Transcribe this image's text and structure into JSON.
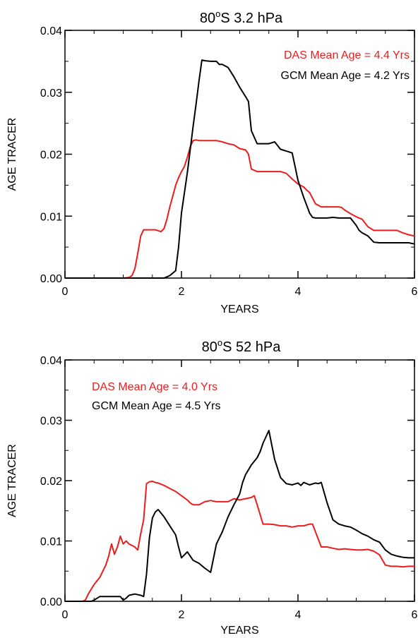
{
  "chart_data": [
    {
      "type": "line",
      "title": {
        "lat": "80",
        "sup": "o",
        "rest": "S  3.2 hPa"
      },
      "xlabel": "YEARS",
      "ylabel": "AGE TRACER",
      "xlim": [
        0,
        6
      ],
      "ylim": [
        0,
        0.04
      ],
      "xticks": [
        "0",
        "2",
        "4",
        "6"
      ],
      "yticks": [
        "0.00",
        "0.01",
        "0.02",
        "0.03",
        "0.04"
      ],
      "legend_position": "top-right",
      "series": [
        {
          "name": "DAS",
          "label": "DAS Mean Age = 4.4 Yrs",
          "color": "#ee1c1c",
          "x": [
            0.0,
            0.5,
            1.0,
            1.1,
            1.15,
            1.2,
            1.25,
            1.3,
            1.35,
            1.45,
            1.55,
            1.65,
            1.7,
            1.75,
            1.8,
            1.85,
            1.9,
            1.95,
            2.0,
            2.05,
            2.1,
            2.15,
            2.2,
            2.25,
            2.3,
            2.4,
            2.5,
            2.6,
            2.7,
            2.8,
            2.9,
            3.0,
            3.1,
            3.15,
            3.2,
            3.3,
            3.4,
            3.5,
            3.6,
            3.7,
            3.8,
            3.9,
            4.0,
            4.1,
            4.15,
            4.2,
            4.3,
            4.4,
            4.5,
            4.6,
            4.7,
            4.75,
            4.8,
            4.9,
            5.0,
            5.05,
            5.1,
            5.2,
            5.3,
            5.4,
            5.5,
            5.6,
            5.7,
            5.8,
            5.9,
            6.0
          ],
          "y": [
            0.0,
            0.0,
            0.0,
            0.0001,
            0.0004,
            0.0015,
            0.004,
            0.0068,
            0.0078,
            0.0078,
            0.0078,
            0.0075,
            0.008,
            0.0095,
            0.0115,
            0.0132,
            0.015,
            0.0162,
            0.0172,
            0.018,
            0.0195,
            0.0212,
            0.0222,
            0.0223,
            0.0222,
            0.0222,
            0.0222,
            0.0222,
            0.022,
            0.0217,
            0.0215,
            0.0209,
            0.0207,
            0.02,
            0.0176,
            0.0172,
            0.0172,
            0.0172,
            0.0172,
            0.0172,
            0.0169,
            0.016,
            0.0152,
            0.0147,
            0.0142,
            0.0138,
            0.012,
            0.0115,
            0.0115,
            0.0115,
            0.0115,
            0.0114,
            0.011,
            0.0104,
            0.0099,
            0.0097,
            0.0095,
            0.0083,
            0.0077,
            0.0077,
            0.0077,
            0.0077,
            0.0077,
            0.0073,
            0.007,
            0.0068
          ]
        },
        {
          "name": "GCM",
          "label": "GCM Mean Age = 4.2 Yrs",
          "color": "#000000",
          "x": [
            0.0,
            1.0,
            1.5,
            1.6,
            1.7,
            1.8,
            1.9,
            1.95,
            2.0,
            2.1,
            2.2,
            2.25,
            2.3,
            2.35,
            2.4,
            2.5,
            2.6,
            2.65,
            2.7,
            2.8,
            2.9,
            3.0,
            3.1,
            3.15,
            3.2,
            3.3,
            3.4,
            3.5,
            3.6,
            3.7,
            3.8,
            3.9,
            4.0,
            4.1,
            4.2,
            4.25,
            4.3,
            4.4,
            4.5,
            4.6,
            4.7,
            4.8,
            4.9,
            5.0,
            5.05,
            5.1,
            5.2,
            5.3,
            5.4,
            5.5,
            5.6,
            5.7,
            5.8,
            5.9,
            6.0
          ],
          "y": [
            0.0,
            0.0,
            0.0,
            0.0,
            0.0,
            0.0004,
            0.0012,
            0.005,
            0.0105,
            0.017,
            0.0245,
            0.028,
            0.0318,
            0.0352,
            0.0351,
            0.035,
            0.035,
            0.0345,
            0.0345,
            0.034,
            0.0325,
            0.0308,
            0.0293,
            0.0285,
            0.0238,
            0.0217,
            0.0217,
            0.0217,
            0.022,
            0.0208,
            0.0205,
            0.0202,
            0.0158,
            0.013,
            0.0105,
            0.0098,
            0.0097,
            0.0097,
            0.0097,
            0.0098,
            0.0097,
            0.0097,
            0.0097,
            0.0085,
            0.0077,
            0.0073,
            0.0068,
            0.0058,
            0.0057,
            0.0057,
            0.0057,
            0.0057,
            0.0057,
            0.0057,
            0.0055
          ]
        }
      ]
    },
    {
      "type": "line",
      "title": {
        "lat": "80",
        "sup": "o",
        "rest": "S  52 hPa"
      },
      "xlabel": "YEARS",
      "ylabel": "AGE TRACER",
      "xlim": [
        0,
        6
      ],
      "ylim": [
        0,
        0.04
      ],
      "xticks": [
        "0",
        "2",
        "4",
        "6"
      ],
      "yticks": [
        "0.00",
        "0.01",
        "0.02",
        "0.03",
        "0.04"
      ],
      "legend_position": "top-left",
      "series": [
        {
          "name": "DAS",
          "label": "DAS Mean Age = 4.0 Yrs",
          "color": "#ee1c1c",
          "x": [
            0.0,
            0.3,
            0.35,
            0.4,
            0.5,
            0.6,
            0.7,
            0.75,
            0.8,
            0.85,
            0.9,
            0.95,
            1.0,
            1.05,
            1.1,
            1.2,
            1.25,
            1.3,
            1.35,
            1.4,
            1.45,
            1.5,
            1.55,
            1.6,
            1.7,
            1.8,
            1.9,
            2.0,
            2.1,
            2.15,
            2.2,
            2.3,
            2.4,
            2.5,
            2.6,
            2.7,
            2.8,
            2.9,
            3.0,
            3.1,
            3.2,
            3.25,
            3.3,
            3.4,
            3.5,
            3.6,
            3.7,
            3.8,
            3.9,
            4.0,
            4.1,
            4.2,
            4.25,
            4.3,
            4.4,
            4.5,
            4.6,
            4.7,
            4.8,
            4.9,
            5.0,
            5.1,
            5.2,
            5.3,
            5.4,
            5.5,
            5.6,
            5.7,
            5.8,
            5.9,
            6.0
          ],
          "y": [
            0.0,
            0.0,
            0.0002,
            0.0012,
            0.0028,
            0.004,
            0.006,
            0.0075,
            0.0095,
            0.0078,
            0.009,
            0.0108,
            0.0095,
            0.01,
            0.0095,
            0.009,
            0.0085,
            0.0112,
            0.0135,
            0.0195,
            0.0198,
            0.0199,
            0.0197,
            0.0196,
            0.0192,
            0.0187,
            0.0182,
            0.0175,
            0.0168,
            0.0163,
            0.016,
            0.016,
            0.0165,
            0.0167,
            0.0165,
            0.0165,
            0.0165,
            0.017,
            0.0168,
            0.017,
            0.0172,
            0.0175,
            0.016,
            0.0128,
            0.0128,
            0.0127,
            0.0125,
            0.0125,
            0.0123,
            0.0125,
            0.0125,
            0.0128,
            0.0128,
            0.0115,
            0.009,
            0.009,
            0.0088,
            0.0086,
            0.0087,
            0.0086,
            0.0085,
            0.0085,
            0.0086,
            0.0083,
            0.0077,
            0.006,
            0.0058,
            0.0058,
            0.0057,
            0.0058,
            0.0058
          ]
        },
        {
          "name": "GCM",
          "label": "GCM Mean Age = 4.5 Yrs",
          "color": "#000000",
          "x": [
            0.0,
            0.45,
            0.5,
            0.55,
            0.6,
            0.7,
            0.8,
            0.9,
            0.95,
            1.0,
            1.05,
            1.1,
            1.2,
            1.3,
            1.35,
            1.4,
            1.45,
            1.5,
            1.55,
            1.6,
            1.7,
            1.8,
            1.9,
            1.95,
            2.0,
            2.1,
            2.2,
            2.3,
            2.4,
            2.5,
            2.6,
            2.7,
            2.8,
            2.9,
            3.0,
            3.05,
            3.1,
            3.2,
            3.3,
            3.35,
            3.4,
            3.5,
            3.6,
            3.7,
            3.8,
            3.9,
            4.0,
            4.05,
            4.1,
            4.2,
            4.3,
            4.35,
            4.4,
            4.5,
            4.6,
            4.7,
            4.8,
            4.9,
            5.0,
            5.1,
            5.2,
            5.3,
            5.4,
            5.5,
            5.6,
            5.7,
            5.8,
            5.9,
            6.0
          ],
          "y": [
            0.0,
            0.0,
            0.0002,
            0.0005,
            0.0008,
            0.0008,
            0.0008,
            0.0008,
            0.0008,
            0.0002,
            0.0005,
            0.001,
            0.0012,
            0.001,
            0.0008,
            0.0045,
            0.0105,
            0.0138,
            0.0148,
            0.0152,
            0.014,
            0.0125,
            0.011,
            0.009,
            0.0072,
            0.0082,
            0.0068,
            0.0063,
            0.0055,
            0.0048,
            0.0095,
            0.0115,
            0.014,
            0.016,
            0.0178,
            0.0197,
            0.021,
            0.0226,
            0.0238,
            0.0248,
            0.0262,
            0.0283,
            0.0235,
            0.0205,
            0.0195,
            0.0193,
            0.0196,
            0.0192,
            0.0197,
            0.0193,
            0.0196,
            0.0195,
            0.0197,
            0.0163,
            0.0135,
            0.0128,
            0.0125,
            0.0123,
            0.0118,
            0.0112,
            0.0108,
            0.0102,
            0.0098,
            0.0085,
            0.0078,
            0.0075,
            0.0073,
            0.0072,
            0.0072
          ]
        }
      ]
    }
  ]
}
